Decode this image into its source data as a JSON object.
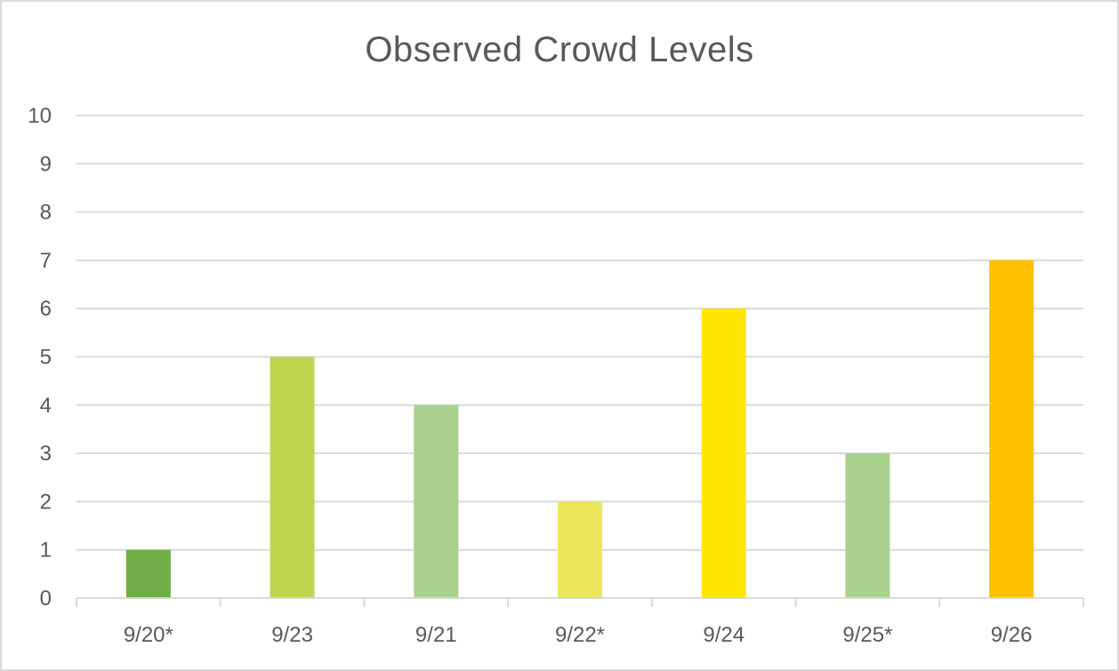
{
  "chart_data": {
    "type": "bar",
    "title": "Observed Crowd Levels",
    "xlabel": "",
    "ylabel": "",
    "categories": [
      "9/20*",
      "9/23",
      "9/21",
      "9/22*",
      "9/24",
      "9/25*",
      "9/26"
    ],
    "values": [
      1,
      5,
      4,
      2,
      6,
      3,
      7
    ],
    "bar_colors": [
      "#70ad47",
      "#bfd54f",
      "#a9d18e",
      "#ebe65a",
      "#ffe600",
      "#a9d18e",
      "#ffc000"
    ],
    "ylim": [
      0,
      10
    ],
    "yticks": [
      "0",
      "1",
      "2",
      "3",
      "4",
      "5",
      "6",
      "7",
      "8",
      "9",
      "10"
    ],
    "grid": true,
    "legend": "none",
    "colors": {
      "gridline": "#d9d9d9",
      "axis_text": "#595959",
      "frame": "#d9d9d9"
    }
  }
}
